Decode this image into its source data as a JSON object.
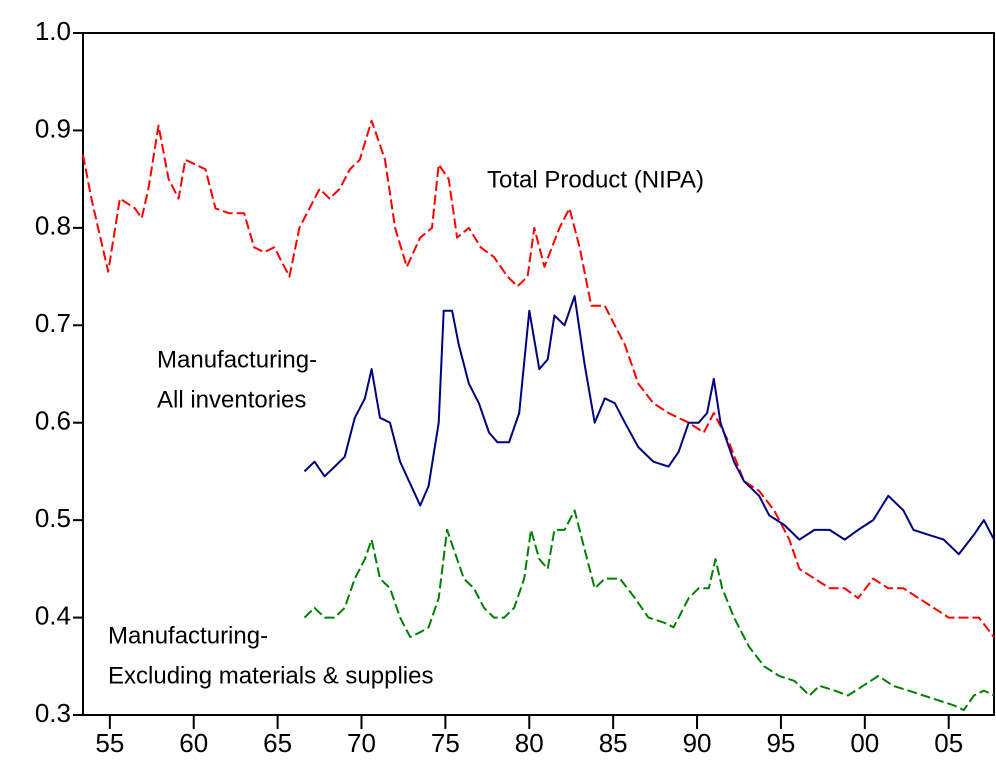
{
  "chart_data": {
    "type": "line",
    "xlim": [
      1953.4,
      2007.7
    ],
    "xticks": [
      {
        "value": 1955,
        "label": "55"
      },
      {
        "value": 1960,
        "label": "60"
      },
      {
        "value": 1965,
        "label": "65"
      },
      {
        "value": 1970,
        "label": "70"
      },
      {
        "value": 1975,
        "label": "75"
      },
      {
        "value": 1980,
        "label": "80"
      },
      {
        "value": 1985,
        "label": "85"
      },
      {
        "value": 1990,
        "label": "90"
      },
      {
        "value": 1995,
        "label": "95"
      },
      {
        "value": 2000,
        "label": "00"
      },
      {
        "value": 2005,
        "label": "05"
      }
    ],
    "ylim": [
      0.3,
      1.0
    ],
    "yticks": [
      0.3,
      0.4,
      0.5,
      0.6,
      0.7,
      0.8,
      0.9,
      {
        "value": 1,
        "label": "1.0"
      }
    ],
    "grid": false,
    "annotations": [
      {
        "lines": [
          "Total Product (NIPA)"
        ]
      },
      {
        "lines": [
          "Manufacturing-",
          "All inventories"
        ]
      },
      {
        "lines": [
          "Manufacturing-",
          "Excluding materials & supplies"
        ]
      }
    ],
    "series": [
      {
        "color": "#ff0000",
        "style": "dashed",
        "x": [
          1953.4,
          1953.9,
          1954.9,
          1955.6,
          1956.5,
          1956.9,
          1957.3,
          1957.9,
          1958.5,
          1959.1,
          1959.5,
          1960.1,
          1960.7,
          1961.3,
          1962.1,
          1963.0,
          1963.6,
          1964.2,
          1964.8,
          1965.7,
          1966.3,
          1966.9,
          1967.5,
          1968.1,
          1968.7,
          1969.3,
          1969.9,
          1970.6,
          1971.4,
          1972.0,
          1972.7,
          1973.5,
          1974.2,
          1974.6,
          1975.2,
          1975.7,
          1976.4,
          1977.1,
          1977.9,
          1978.7,
          1979.3,
          1979.9,
          1980.3,
          1980.9,
          1981.8,
          1982.4,
          1983.0,
          1983.7,
          1984.5,
          1985.1,
          1985.7,
          1986.5,
          1987.4,
          1988.3,
          1989.5,
          1990.4,
          1991.0,
          1991.9,
          1992.8,
          1993.7,
          1994.6,
          1995.5,
          1996.1,
          1997.0,
          1997.9,
          1998.8,
          1999.6,
          2000.5,
          2001.4,
          2002.3,
          2003.2,
          2004.1,
          2005.0,
          2005.9,
          2006.8,
          2007.7
        ],
        "values": [
          0.875,
          0.83,
          0.755,
          0.83,
          0.82,
          0.81,
          0.84,
          0.905,
          0.85,
          0.83,
          0.87,
          0.865,
          0.86,
          0.82,
          0.815,
          0.815,
          0.78,
          0.775,
          0.78,
          0.75,
          0.8,
          0.82,
          0.84,
          0.83,
          0.84,
          0.86,
          0.87,
          0.91,
          0.87,
          0.8,
          0.76,
          0.79,
          0.8,
          0.865,
          0.85,
          0.79,
          0.8,
          0.78,
          0.77,
          0.75,
          0.74,
          0.75,
          0.8,
          0.76,
          0.8,
          0.82,
          0.78,
          0.72,
          0.72,
          0.7,
          0.68,
          0.64,
          0.62,
          0.61,
          0.6,
          0.59,
          0.61,
          0.58,
          0.54,
          0.53,
          0.51,
          0.48,
          0.45,
          0.44,
          0.43,
          0.43,
          0.42,
          0.44,
          0.43,
          0.43,
          0.42,
          0.41,
          0.4,
          0.4,
          0.4,
          0.38
        ]
      },
      {
        "color": "#000080",
        "style": "solid",
        "x": [
          1966.6,
          1967.2,
          1967.8,
          1968.4,
          1969.0,
          1969.6,
          1970.2,
          1970.6,
          1971.1,
          1971.7,
          1972.3,
          1972.7,
          1973.5,
          1974.0,
          1974.6,
          1974.9,
          1975.4,
          1975.8,
          1976.4,
          1977.0,
          1977.6,
          1978.1,
          1978.8,
          1979.4,
          1980.0,
          1980.6,
          1981.1,
          1981.5,
          1982.1,
          1982.7,
          1983.3,
          1983.9,
          1984.5,
          1985.1,
          1985.7,
          1986.5,
          1987.4,
          1988.3,
          1988.9,
          1989.5,
          1990.1,
          1990.6,
          1991.0,
          1991.4,
          1992.2,
          1992.8,
          1993.7,
          1994.3,
          1995.2,
          1996.1,
          1997.0,
          1997.9,
          1998.8,
          1999.6,
          2000.5,
          2001.4,
          2002.3,
          2002.9,
          2003.8,
          2004.7,
          2005.6,
          2006.5,
          2007.1,
          2007.7
        ],
        "values": [
          0.55,
          0.56,
          0.545,
          0.555,
          0.565,
          0.605,
          0.625,
          0.655,
          0.605,
          0.6,
          0.56,
          0.545,
          0.515,
          0.535,
          0.6,
          0.715,
          0.715,
          0.68,
          0.64,
          0.62,
          0.59,
          0.58,
          0.58,
          0.61,
          0.715,
          0.655,
          0.665,
          0.71,
          0.7,
          0.73,
          0.66,
          0.6,
          0.625,
          0.62,
          0.6,
          0.575,
          0.56,
          0.555,
          0.57,
          0.6,
          0.6,
          0.61,
          0.645,
          0.6,
          0.56,
          0.54,
          0.525,
          0.505,
          0.495,
          0.48,
          0.49,
          0.49,
          0.48,
          0.49,
          0.5,
          0.525,
          0.51,
          0.49,
          0.485,
          0.48,
          0.465,
          0.485,
          0.5,
          0.48
        ]
      },
      {
        "color": "#008000",
        "style": "dashed",
        "x": [
          1966.6,
          1967.2,
          1967.8,
          1968.4,
          1969.0,
          1969.6,
          1970.2,
          1970.6,
          1971.1,
          1971.7,
          1972.3,
          1972.9,
          1973.5,
          1974.0,
          1974.6,
          1975.1,
          1975.5,
          1976.1,
          1976.7,
          1977.3,
          1977.9,
          1978.5,
          1979.1,
          1979.7,
          1980.1,
          1980.6,
          1981.1,
          1981.5,
          1982.1,
          1982.7,
          1983.3,
          1983.9,
          1984.5,
          1985.4,
          1986.3,
          1987.1,
          1988.0,
          1988.6,
          1989.5,
          1990.1,
          1990.7,
          1991.1,
          1991.5,
          1992.2,
          1993.1,
          1994.0,
          1994.9,
          1995.8,
          1996.7,
          1997.3,
          1998.2,
          1999.0,
          1999.9,
          2000.8,
          2001.7,
          2002.6,
          2003.5,
          2004.4,
          2005.3,
          2005.9,
          2006.5,
          2007.1,
          2007.7
        ],
        "values": [
          0.4,
          0.41,
          0.4,
          0.4,
          0.41,
          0.44,
          0.46,
          0.48,
          0.44,
          0.43,
          0.4,
          0.38,
          0.385,
          0.39,
          0.42,
          0.49,
          0.47,
          0.44,
          0.43,
          0.41,
          0.4,
          0.4,
          0.41,
          0.44,
          0.49,
          0.46,
          0.45,
          0.49,
          0.49,
          0.51,
          0.47,
          0.43,
          0.44,
          0.44,
          0.42,
          0.4,
          0.395,
          0.39,
          0.42,
          0.43,
          0.43,
          0.46,
          0.43,
          0.4,
          0.37,
          0.35,
          0.34,
          0.335,
          0.32,
          0.33,
          0.325,
          0.32,
          0.33,
          0.34,
          0.33,
          0.325,
          0.32,
          0.315,
          0.31,
          0.305,
          0.32,
          0.325,
          0.32
        ]
      }
    ]
  }
}
